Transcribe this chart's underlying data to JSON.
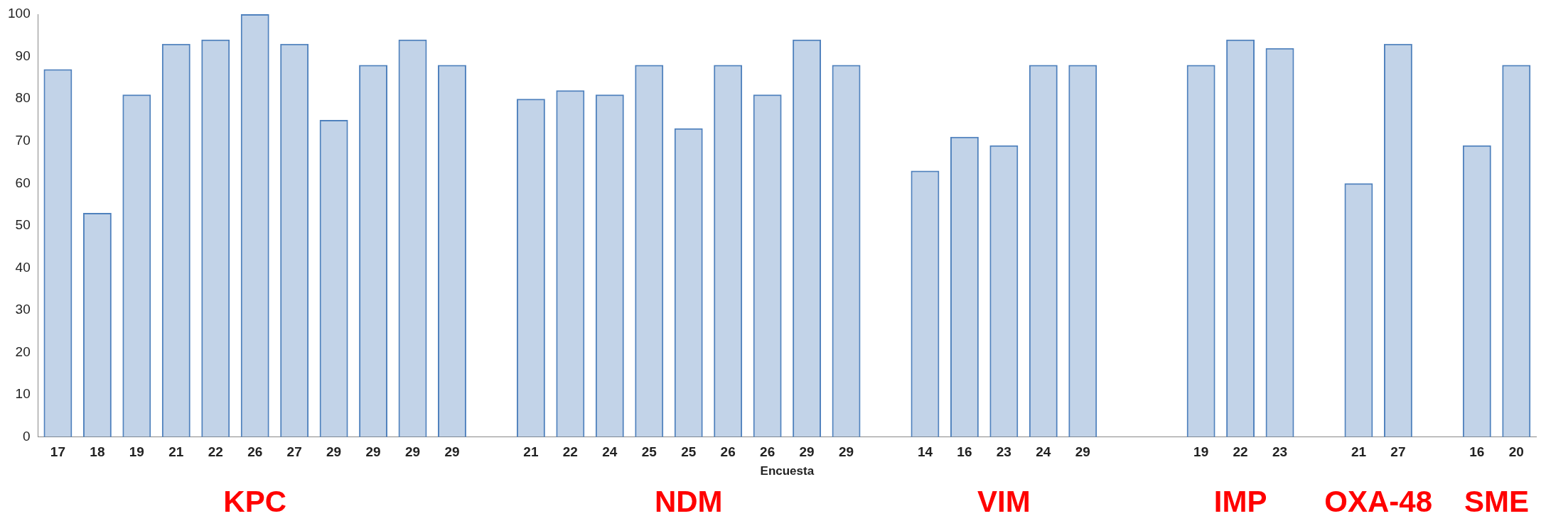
{
  "chart_data": {
    "type": "bar",
    "xlabel": "Encuesta",
    "categories": [
      "17",
      "18",
      "19",
      "21",
      "22",
      "26",
      "27",
      "29",
      "29",
      "29",
      "29",
      null,
      "21",
      "22",
      "24",
      "25",
      "25",
      "26",
      "26",
      "29",
      "29",
      null,
      "14",
      "16",
      "23",
      "24",
      "29",
      null,
      null,
      "19",
      "22",
      "23",
      null,
      "21",
      "27",
      null,
      "16",
      "20"
    ],
    "values": [
      87,
      53,
      81,
      93,
      94,
      100,
      93,
      75,
      88,
      94,
      88,
      null,
      80,
      82,
      81,
      88,
      73,
      88,
      81,
      94,
      88,
      null,
      63,
      71,
      69,
      88,
      88,
      null,
      null,
      88,
      94,
      92,
      null,
      60,
      93,
      null,
      69,
      88
    ],
    "color": "#4f81bd",
    "ylim": [
      0,
      100
    ],
    "yticks": [
      0,
      10,
      20,
      30,
      40,
      50,
      60,
      70,
      80,
      90,
      100
    ],
    "grid": false,
    "legend": false,
    "annotations": [
      "KPC",
      "NDM",
      "VIM",
      "IMP",
      "OXA-48",
      "SME"
    ]
  }
}
